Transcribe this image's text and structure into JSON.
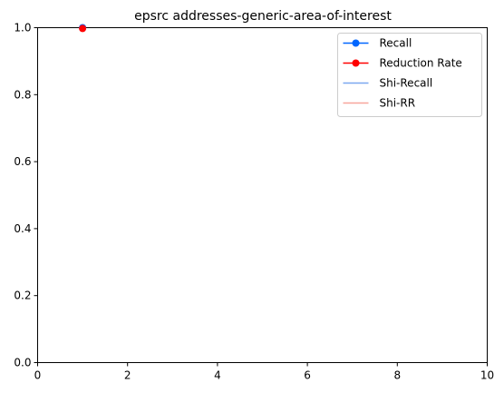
{
  "chart_data": {
    "type": "line",
    "title": "epsrc addresses-generic-area-of-interest",
    "xlabel": "",
    "ylabel": "",
    "xlim": [
      0,
      10
    ],
    "ylim": [
      0,
      1.0
    ],
    "xticks": [
      0,
      2,
      4,
      6,
      8,
      10
    ],
    "yticks": [
      0.0,
      0.2,
      0.4,
      0.6,
      0.8,
      1.0
    ],
    "xtick_labels": [
      "0",
      "2",
      "4",
      "6",
      "8",
      "10"
    ],
    "ytick_labels": [
      "0.0",
      "0.2",
      "0.4",
      "0.6",
      "0.8",
      "1.0"
    ],
    "grid": false,
    "legend_position": "top-right",
    "series": [
      {
        "name": "Recall",
        "x": [
          1
        ],
        "y": [
          1.0
        ],
        "color": "#0066ff",
        "marker": "circle",
        "style": "solid"
      },
      {
        "name": "Reduction Rate",
        "x": [
          1
        ],
        "y": [
          0.9975
        ],
        "color": "#ff0000",
        "marker": "circle",
        "style": "solid"
      },
      {
        "name": "Shi-Recall",
        "x": [],
        "y": [],
        "color": "#7aa7f0",
        "marker": "none",
        "style": "solid"
      },
      {
        "name": "Shi-RR",
        "x": [],
        "y": [],
        "color": "#f7a59c",
        "marker": "none",
        "style": "solid"
      }
    ]
  }
}
